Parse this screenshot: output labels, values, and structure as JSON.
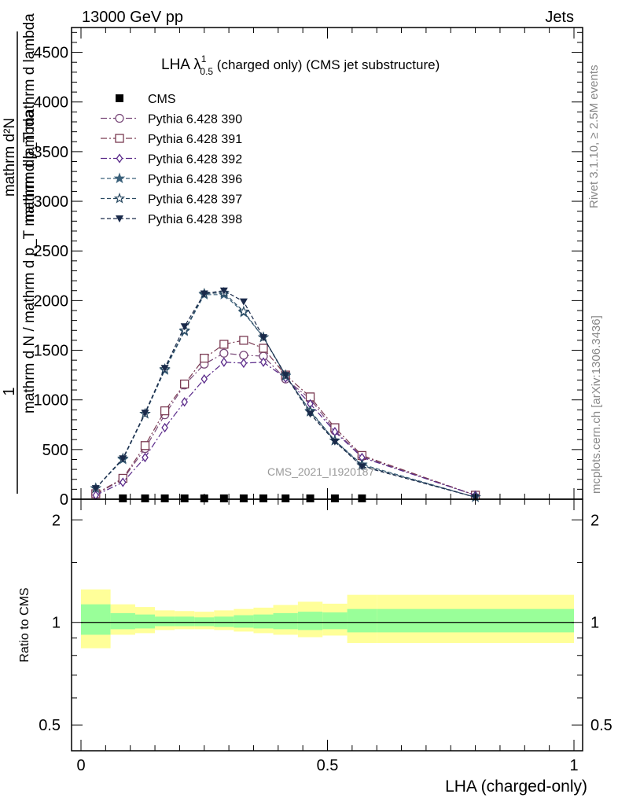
{
  "header": {
    "energy_label": "13000 GeV pp",
    "category_label": "Jets",
    "title_main": "LHA λ",
    "title_sup": "1",
    "title_sub": "0.5",
    "title_rest": " (charged only) (CMS jet substructure)",
    "watermark": "CMS_2021_I1920187",
    "side_label_top": "Rivet 3.1.10, ≥ 2.5M events",
    "side_label_bottom": "mcplots.cern.ch [arXiv:1306.3436]"
  },
  "colors": {
    "cms": "#000000",
    "s390": "#7a4a7a",
    "s391": "#7a3a52",
    "s392": "#5a2a8a",
    "s396": "#3a607a",
    "s397": "#2a4a62",
    "s398": "#1a2a4a",
    "band_outer": "#ffff99",
    "band_inner": "#99ff99"
  },
  "chart_data": [
    {
      "type": "line",
      "title": "LHA λ_0.5^1 (charged only) (CMS jet substructure)",
      "ylabel_numerator": "1",
      "ylabel_denominator": "mathrm d N / mathrm d p_T mathrm d lambda",
      "ylabel_extra": "mathrm d²N",
      "ylabel_extra2": "mathrm dp_T mathrm d lambda",
      "xlabel": "LHA (charged-only)",
      "xlim": [
        -0.02,
        1.02
      ],
      "ylim": [
        0,
        4750
      ],
      "yticks": [
        0,
        500,
        1000,
        1500,
        2000,
        2500,
        3000,
        3500,
        4000,
        4500
      ],
      "ytick_labels": [
        "0",
        "500",
        "1000",
        "1500",
        "2000",
        "2500",
        "3000",
        "3500",
        "4000",
        "4500"
      ],
      "legend_position": "top-left",
      "bins": [
        0.0,
        0.06,
        0.11,
        0.15,
        0.19,
        0.23,
        0.27,
        0.31,
        0.35,
        0.39,
        0.44,
        0.49,
        0.54,
        0.6,
        1.0
      ],
      "x": [
        0.03,
        0.085,
        0.13,
        0.17,
        0.21,
        0.25,
        0.29,
        0.33,
        0.37,
        0.415,
        0.465,
        0.515,
        0.57,
        0.8
      ],
      "series": [
        {
          "name": "CMS",
          "style": "cms",
          "marker": "square-filled",
          "color_key": "cms",
          "x": [
            0.085,
            0.13,
            0.17,
            0.21,
            0.25,
            0.29,
            0.33,
            0.37,
            0.415,
            0.465,
            0.515,
            0.57
          ],
          "values": [
            0,
            0,
            0,
            0,
            0,
            0,
            0,
            0,
            0,
            0,
            0,
            0
          ]
        },
        {
          "name": "Pythia 6.428 390",
          "style": "dashdot",
          "marker": "circle-open",
          "color_key": "s390",
          "values": [
            50,
            200,
            510,
            850,
            1150,
            1360,
            1470,
            1450,
            1440,
            1210,
            1010,
            690,
            430,
            40
          ]
        },
        {
          "name": "Pythia 6.428 391",
          "style": "dashdot",
          "marker": "square-open",
          "color_key": "s391",
          "values": [
            55,
            210,
            540,
            890,
            1160,
            1420,
            1560,
            1600,
            1520,
            1250,
            1030,
            720,
            440,
            40
          ]
        },
        {
          "name": "Pythia 6.428 392",
          "style": "dashdot",
          "marker": "diamond-open",
          "color_key": "s392",
          "values": [
            40,
            170,
            420,
            720,
            980,
            1210,
            1380,
            1370,
            1380,
            1220,
            960,
            680,
            420,
            40
          ]
        },
        {
          "name": "Pythia 6.428 396",
          "style": "dashed",
          "marker": "star-filled",
          "color_key": "s396",
          "values": [
            110,
            400,
            860,
            1300,
            1690,
            2060,
            2060,
            1880,
            1630,
            1240,
            890,
            590,
            350,
            20
          ]
        },
        {
          "name": "Pythia 6.428 397",
          "style": "dashed",
          "marker": "star-open",
          "color_key": "s397",
          "values": [
            110,
            410,
            860,
            1310,
            1700,
            2070,
            2080,
            1890,
            1630,
            1250,
            880,
            590,
            340,
            20
          ]
        },
        {
          "name": "Pythia 6.428 398",
          "style": "dashed",
          "marker": "triangle-down-filled",
          "color_key": "s398",
          "values": [
            110,
            410,
            870,
            1320,
            1740,
            2070,
            2100,
            1990,
            1630,
            1250,
            860,
            580,
            330,
            20
          ]
        }
      ]
    },
    {
      "type": "area",
      "ylabel": "Ratio to CMS",
      "ylim": [
        0.42,
        2.3
      ],
      "log_y": true,
      "yticks": [
        0.5,
        1,
        2
      ],
      "ytick_labels": [
        "0.5",
        "1",
        "2"
      ],
      "xticks": [
        0,
        0.5,
        1
      ],
      "xtick_labels": [
        "0",
        "0.5",
        "1"
      ],
      "bins": [
        0.0,
        0.06,
        0.11,
        0.15,
        0.19,
        0.23,
        0.27,
        0.31,
        0.35,
        0.39,
        0.44,
        0.49,
        0.54,
        0.6,
        1.0
      ],
      "outer_band_lo": [
        0.84,
        0.92,
        0.93,
        0.95,
        0.955,
        0.955,
        0.95,
        0.94,
        0.93,
        0.92,
        0.905,
        0.915,
        0.87,
        0.87
      ],
      "outer_band_hi": [
        1.25,
        1.13,
        1.11,
        1.085,
        1.08,
        1.075,
        1.085,
        1.095,
        1.105,
        1.125,
        1.15,
        1.135,
        1.205,
        1.205
      ],
      "inner_band_lo": [
        0.92,
        0.955,
        0.96,
        0.975,
        0.975,
        0.975,
        0.97,
        0.965,
        0.96,
        0.955,
        0.95,
        0.955,
        0.935,
        0.935
      ],
      "inner_band_hi": [
        1.13,
        1.065,
        1.055,
        1.04,
        1.04,
        1.035,
        1.04,
        1.05,
        1.055,
        1.065,
        1.075,
        1.07,
        1.095,
        1.095
      ],
      "reference_value": 1
    }
  ]
}
